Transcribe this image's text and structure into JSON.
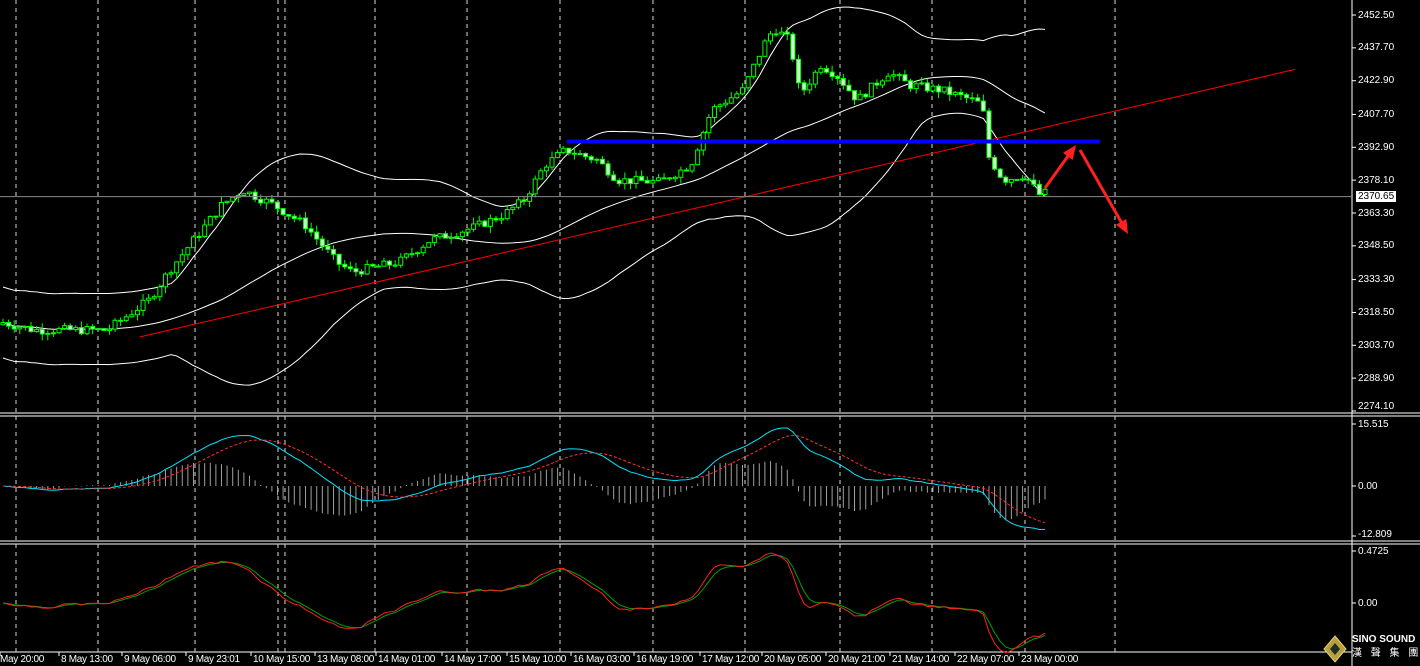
{
  "chart_data": [
    {
      "type": "candlestick",
      "panel": "price",
      "y_ticks": [
        "2452.50",
        "2437.70",
        "2422.90",
        "2407.70",
        "2392.90",
        "2378.10",
        "2363.30",
        "2348.50",
        "2333.30",
        "2318.50",
        "2303.70",
        "2288.90",
        "2274.10"
      ],
      "ylim": [
        2274.1,
        2452.5
      ],
      "current_price": "2370.65",
      "grid": "vertical dashed",
      "close_path": {
        "x_labels_index": [
          0,
          0.03,
          0.1,
          0.14,
          0.16,
          0.21,
          0.23,
          0.26,
          0.29,
          0.32,
          0.335,
          0.38,
          0.41,
          0.45,
          0.48,
          0.5,
          0.52,
          0.54,
          0.57,
          0.59,
          0.63,
          0.66,
          0.68,
          0.71,
          0.73,
          0.74,
          0.755,
          0.765,
          0.785,
          0.8,
          0.82,
          0.85,
          0.87,
          0.9,
          0.93,
          0.94,
          0.945,
          0.96,
          0.98,
          0.995,
          1
        ],
        "price": [
          2314,
          2310.6,
          2310.6,
          2324,
          2337.6,
          2366.9,
          2373.7,
          2366.9,
          2357.9,
          2341.2,
          2336.7,
          2341.2,
          2351.1,
          2356.5,
          2362.4,
          2369.2,
          2384.9,
          2391.7,
          2387.2,
          2378.2,
          2377.3,
          2384.9,
          2409.7,
          2418.7,
          2439,
          2446.6,
          2441.2,
          2416.5,
          2430,
          2425.5,
          2414.2,
          2426.8,
          2420.9,
          2418.7,
          2414.2,
          2412,
          2389.4,
          2378.2,
          2380.4,
          2371.4,
          2372.3
        ]
      },
      "overlays": [
        {
          "kind": "bollinger-bands",
          "color": "#ffffff"
        },
        {
          "kind": "horizontal-line",
          "price": 2395.5,
          "color": "#0000ff"
        },
        {
          "kind": "trendline",
          "from_price": 2307.5,
          "to_price": 2428,
          "color": "#ff0000"
        },
        {
          "kind": "arrow",
          "direction": "up",
          "color": "#ff2020"
        },
        {
          "kind": "arrow",
          "direction": "down",
          "color": "#ff2020"
        }
      ],
      "candle_color": "#00ff00"
    },
    {
      "type": "macd",
      "panel": "macd",
      "y_ticks": [
        "15.515",
        "0.00",
        "-12.809"
      ],
      "ylim": [
        -12.809,
        15.515
      ],
      "colors": {
        "main": "#00e5ff",
        "signal": "#ff3030",
        "histogram": "#a0a0a0"
      }
    },
    {
      "type": "oscillator",
      "panel": "oscillator",
      "y_ticks": [
        "0.4725",
        "0.00"
      ],
      "colors": {
        "fast": "#ff2020",
        "slow": "#00a000"
      }
    }
  ],
  "x_axis": {
    "labels": [
      "May 20:00",
      "8 May 13:00",
      "9 May 06:00",
      "9 May 23:01",
      "10 May 15:00",
      "13 May 08:00",
      "14 May 01:00",
      "14 May 17:00",
      "15 May 10:00",
      "16 May 03:00",
      "16 May 19:00",
      "17 May 12:00",
      "20 May 05:00",
      "20 May 21:00",
      "21 May 14:00",
      "22 May 07:00",
      "23 May 00:00"
    ]
  },
  "logo": {
    "name": "SINO SOUND",
    "sub": "漢 聲 集 團"
  }
}
